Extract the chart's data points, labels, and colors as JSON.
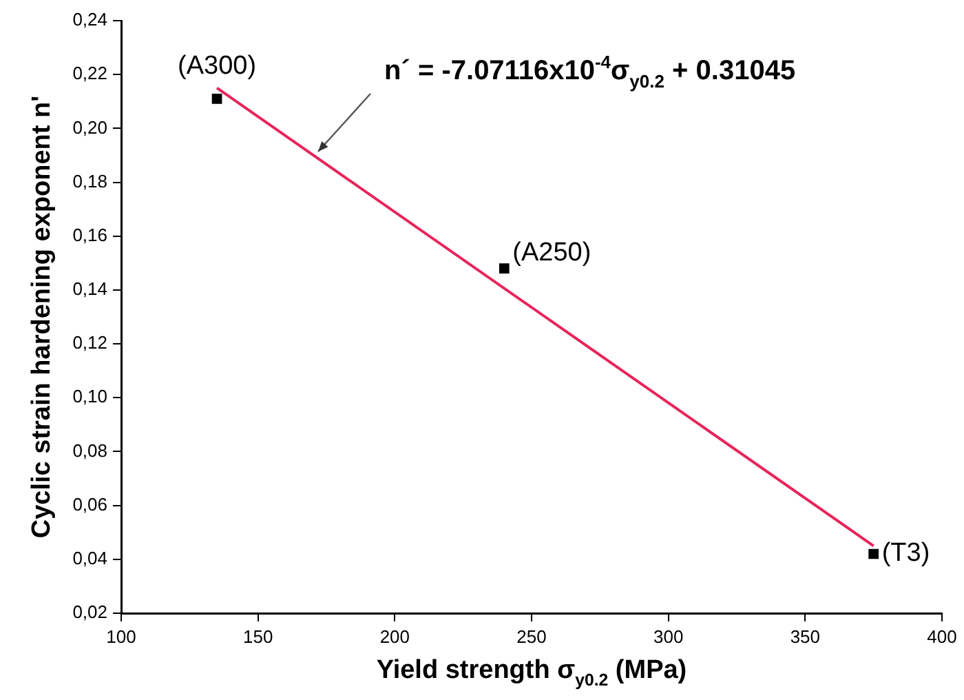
{
  "chart_data": {
    "type": "scatter",
    "xlabel": "Yield strength σ$_{y0.2}$ (MPa)",
    "ylabel": "Cyclic strain hardening exponent n'",
    "xlim": [
      100,
      400
    ],
    "xticks": [
      100,
      150,
      200,
      250,
      300,
      350,
      400
    ],
    "ylim": [
      0.02,
      0.24
    ],
    "yticks": [
      {
        "value": 0.02,
        "label": "0,02"
      },
      {
        "value": 0.04,
        "label": "0,04"
      },
      {
        "value": 0.06,
        "label": "0,06"
      },
      {
        "value": 0.08,
        "label": "0,08"
      },
      {
        "value": 0.1,
        "label": "0,10"
      },
      {
        "value": 0.12,
        "label": "0,12"
      },
      {
        "value": 0.14,
        "label": "0,14"
      },
      {
        "value": 0.16,
        "label": "0,16"
      },
      {
        "value": 0.18,
        "label": "0,18"
      },
      {
        "value": 0.2,
        "label": "0,20"
      },
      {
        "value": 0.22,
        "label": "0,22"
      },
      {
        "value": 0.24,
        "label": "0,24"
      }
    ],
    "grid": false,
    "legend": false,
    "marker": "square",
    "series": [
      {
        "color": "#000000",
        "x": [
          135,
          240,
          375
        ],
        "values": [
          0.211,
          0.148,
          0.042
        ]
      },
      {
        "type": "line",
        "color": "#e8245a",
        "marker": "none",
        "line_style": "solid",
        "x": [
          135,
          375
        ],
        "values": [
          0.215,
          0.045
        ]
      }
    ],
    "annotations": [
      {
        "text": "(A300)",
        "x": 135,
        "y": 0.211
      },
      {
        "text": "(A250)",
        "x": 240,
        "y": 0.148
      },
      {
        "text": "(T3)",
        "x": 375,
        "y": 0.042
      },
      {
        "text": "n´ = -7.07116x10$^{-4}$σ$_{y0.2}$ + 0.31045",
        "x": 171,
        "y": 0.19
      }
    ]
  }
}
